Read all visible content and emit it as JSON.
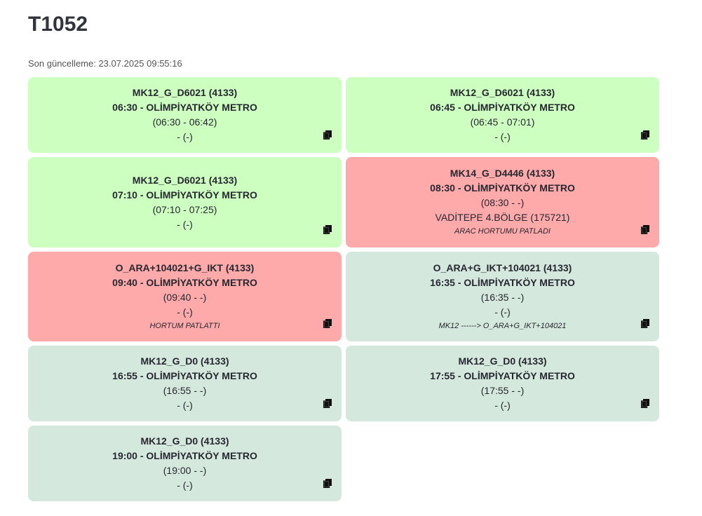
{
  "page": {
    "title": "T1052",
    "updated": "Son güncelleme: 23.07.2025 09:55:16"
  },
  "cards": [
    {
      "line1": "MK12_G_D6021 (4133)",
      "line2": "06:30 - OLİMPİYATKÖY METRO",
      "line3": "(06:30 - 06:42)",
      "line4": "- (-)",
      "note": "",
      "status": "green"
    },
    {
      "line1": "MK12_G_D6021 (4133)",
      "line2": "06:45 - OLİMPİYATKÖY METRO",
      "line3": "(06:45 - 07:01)",
      "line4": "- (-)",
      "note": "",
      "status": "green"
    },
    {
      "line1": "MK12_G_D6021 (4133)",
      "line2": "07:10 - OLİMPİYATKÖY METRO",
      "line3": "(07:10 - 07:25)",
      "line4": "- (-)",
      "note": "",
      "status": "green"
    },
    {
      "line1": "MK14_G_D4446 (4133)",
      "line2": "08:30 - OLİMPİYATKÖY METRO",
      "line3": "(08:30 - -)",
      "line4": "VADİTEPE 4.BÖLGE (175721)",
      "note": "ARAC HORTUMU PATLADI",
      "status": "red"
    },
    {
      "line1": "O_ARA+104021+G_IKT (4133)",
      "line2": "09:40 - OLİMPİYATKÖY METRO",
      "line3": "(09:40 - -)",
      "line4": "- (-)",
      "note": "HORTUM PATLATTI",
      "status": "red"
    },
    {
      "line1": "O_ARA+G_IKT+104021 (4133)",
      "line2": "16:35 - OLİMPİYATKÖY METRO",
      "line3": "(16:35 - -)",
      "line4": "- (-)",
      "note": "MK12 ------> O_ARA+G_IKT+104021",
      "status": "grey"
    },
    {
      "line1": "MK12_G_D0 (4133)",
      "line2": "16:55 - OLİMPİYATKÖY METRO",
      "line3": "(16:55 - -)",
      "line4": "- (-)",
      "note": "",
      "status": "grey"
    },
    {
      "line1": "MK12_G_D0 (4133)",
      "line2": "17:55 - OLİMPİYATKÖY METRO",
      "line3": "(17:55 - -)",
      "line4": "- (-)",
      "note": "",
      "status": "grey"
    },
    {
      "line1": "MK12_G_D0 (4133)",
      "line2": "19:00 - OLİMPİYATKÖY METRO",
      "line3": "(19:00 - -)",
      "line4": "- (-)",
      "note": "",
      "status": "grey"
    }
  ],
  "colors": {
    "green": "#ccffc0",
    "red": "#ffaaaa",
    "grey": "#d5e8dd"
  },
  "icons": {
    "copy": "copy-icon"
  }
}
